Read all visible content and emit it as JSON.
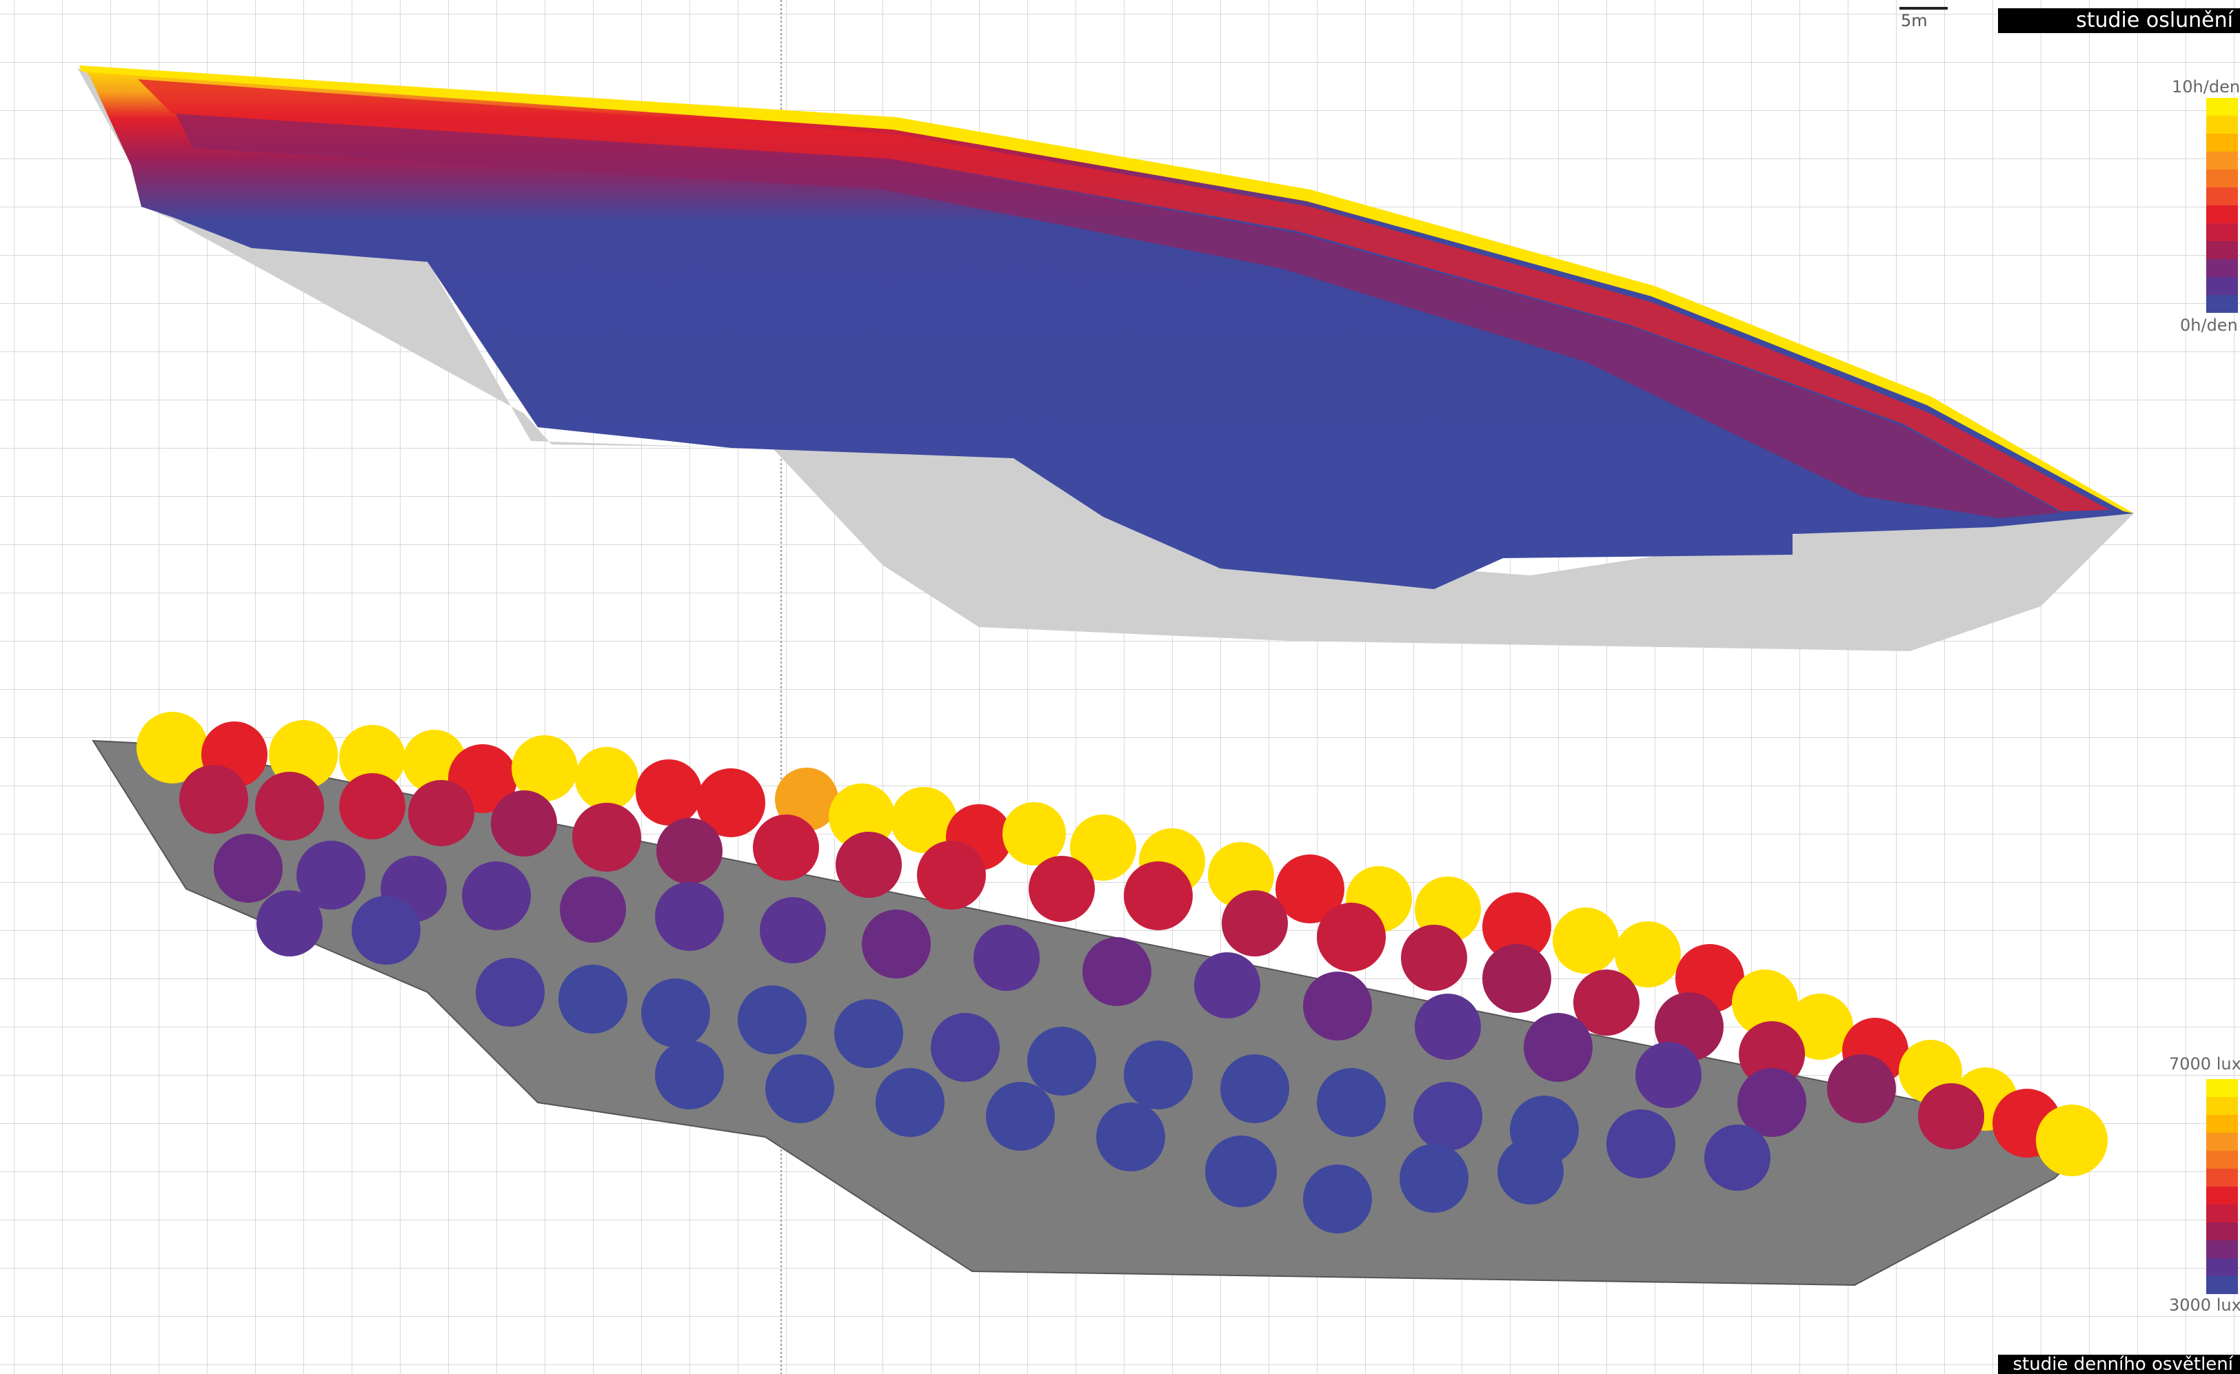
{
  "scale_bar": {
    "label": "5m"
  },
  "sunlight_study": {
    "title": "studie oslunění",
    "legend": {
      "top_label": "10h/den",
      "bottom_label": "0h/den",
      "colors": [
        "#ffef00",
        "#ffd300",
        "#ffb400",
        "#f99521",
        "#f47623",
        "#ee4b2b",
        "#e3202a",
        "#c81e3e",
        "#a01f55",
        "#7a2a78",
        "#5b3592",
        "#3f489d"
      ]
    }
  },
  "daylight_study": {
    "title": "studie denního osvětlení",
    "legend": {
      "top_label": "7000 lux",
      "bottom_label": "3000 lux",
      "colors": [
        "#ffef00",
        "#ffd300",
        "#ffb400",
        "#f99521",
        "#f47623",
        "#ee4b2b",
        "#e3202a",
        "#c81e3e",
        "#a01f55",
        "#7a2a78",
        "#5b3592",
        "#3f489d"
      ]
    }
  }
}
